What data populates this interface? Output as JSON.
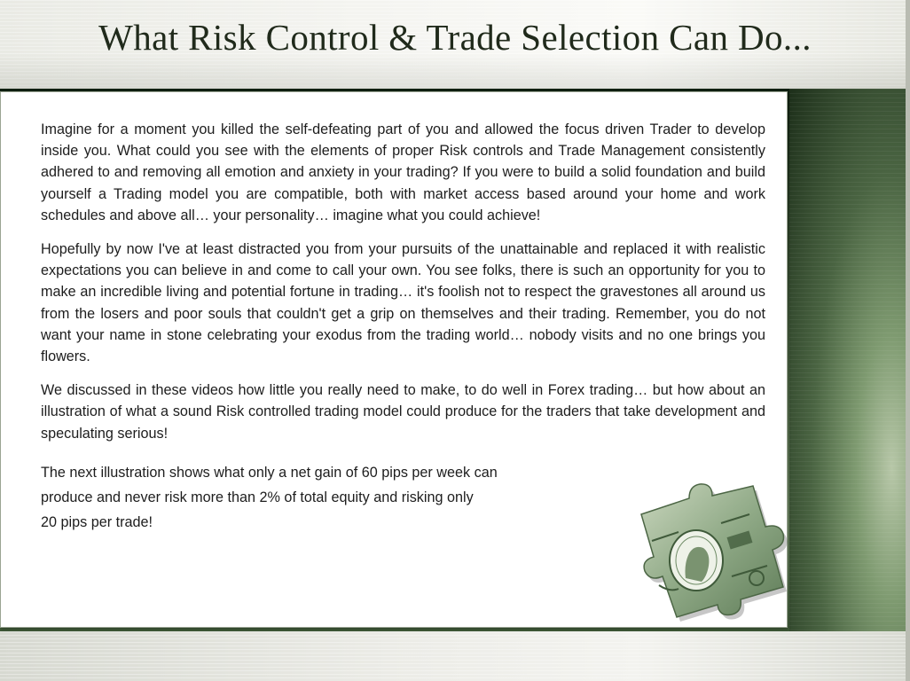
{
  "slide": {
    "title": "What Risk Control & Trade Selection Can Do...",
    "paragraphs": [
      "Imagine for a moment you killed the self-defeating part of you and allowed the focus driven Trader to develop inside you.  What could you see with the elements of proper Risk controls and Trade Management consistently adhered to and removing all emotion and anxiety in your trading?  If you were to build a solid foundation and build yourself a Trading model you are compatible, both with market access based around your home and work schedules and above all… your personality… imagine what you could achieve!",
      "Hopefully by now I've at least distracted you from your pursuits of the unattainable and replaced it with realistic expectations you can believe in and come to call your own.  You see folks, there is such an opportunity for you to make an incredible living and potential fortune in trading… it's foolish not to respect the gravestones all around us from the losers and poor souls that couldn't get a grip on themselves and their trading.  Remember, you do not want your name in stone celebrating your exodus from the trading world… nobody visits and no one brings you flowers.",
      "We discussed in these videos how little you really need to make, to do well in Forex trading… but how about an illustration of what a sound Risk controlled trading model could produce for the traders that take development and speculating serious!"
    ],
    "closing_lines": [
      "The next illustration  shows what only a net gain of 60 pips per week can",
      "produce and never risk more than 2% of total equity and risking only",
      "20 pips per trade!"
    ]
  },
  "decoration": {
    "image": "dollar-bill-puzzle-piece",
    "colors": {
      "bill_green": "#7f9a74",
      "bill_light": "#c9d6bd",
      "bill_dark": "#3f5a3a"
    }
  }
}
